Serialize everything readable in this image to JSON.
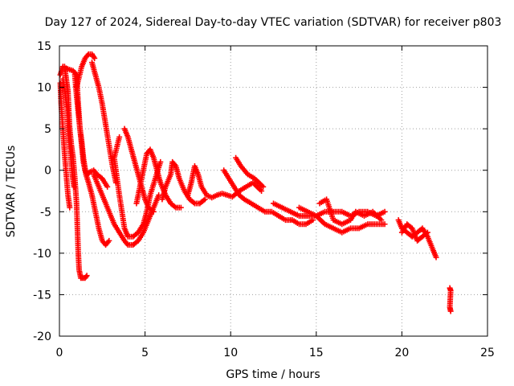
{
  "chart_data": {
    "type": "scatter",
    "title": "Day 127 of 2024, Sidereal Day-to-day VTEC variation (SDTVAR) for receiver p803",
    "xlabel": "GPS time / hours",
    "ylabel": "SDTVAR / TECUs",
    "xlim": [
      0,
      25
    ],
    "ylim": [
      -20,
      15
    ],
    "xticks": [
      "0",
      "5",
      "10",
      "15",
      "20",
      "25"
    ],
    "yticks": [
      "15",
      "10",
      "5",
      "0",
      "-5",
      "-10",
      "-15",
      "-20"
    ],
    "grid": true,
    "marker": "plus",
    "series": [
      {
        "name": "SDTVAR",
        "color": "#ff0000",
        "tracks": [
          [
            [
              0.05,
              11.5
            ],
            [
              0.2,
              12.5
            ],
            [
              0.5,
              12.2
            ],
            [
              0.8,
              12.0
            ],
            [
              1.0,
              11.5
            ],
            [
              1.1,
              8.0
            ],
            [
              1.2,
              5.0
            ],
            [
              1.3,
              3.0
            ],
            [
              1.4,
              1.0
            ],
            [
              1.5,
              0.0
            ],
            [
              1.6,
              -0.5
            ],
            [
              1.8,
              -0.2
            ],
            [
              2.0,
              0.0
            ],
            [
              2.2,
              -0.5
            ],
            [
              2.5,
              -1.0
            ],
            [
              2.8,
              -2.0
            ]
          ],
          [
            [
              0.05,
              10.5
            ],
            [
              0.1,
              8.0
            ],
            [
              0.2,
              5.0
            ],
            [
              0.3,
              2.0
            ],
            [
              0.4,
              -0.5
            ],
            [
              0.5,
              -3.0
            ],
            [
              0.6,
              -4.5
            ]
          ],
          [
            [
              0.3,
              12.5
            ],
            [
              0.4,
              11.0
            ],
            [
              0.5,
              9.5
            ],
            [
              0.55,
              7.0
            ],
            [
              0.6,
              5.0
            ],
            [
              0.7,
              3.0
            ],
            [
              0.8,
              1.5
            ],
            [
              0.9,
              -1.0
            ],
            [
              1.0,
              -4.0
            ],
            [
              1.05,
              -7.0
            ],
            [
              1.1,
              -10.0
            ],
            [
              1.15,
              -12.0
            ],
            [
              1.25,
              -13.0
            ],
            [
              1.5,
              -13.0
            ],
            [
              1.6,
              -12.7
            ]
          ],
          [
            [
              0.2,
              11.0
            ],
            [
              0.35,
              9.0
            ],
            [
              0.45,
              7.5
            ],
            [
              0.55,
              4.0
            ],
            [
              0.65,
              2.0
            ],
            [
              0.75,
              -0.5
            ],
            [
              0.85,
              -2.0
            ]
          ],
          [
            [
              0.9,
              11.5
            ],
            [
              1.0,
              9.0
            ],
            [
              1.1,
              7.0
            ],
            [
              1.2,
              5.0
            ],
            [
              1.3,
              3.5
            ],
            [
              1.4,
              1.5
            ],
            [
              1.55,
              -0.5
            ],
            [
              1.7,
              -1.5
            ],
            [
              1.9,
              -3.0
            ],
            [
              2.1,
              -5.0
            ],
            [
              2.3,
              -7.0
            ],
            [
              2.5,
              -8.5
            ],
            [
              2.7,
              -9.0
            ],
            [
              2.9,
              -8.5
            ]
          ],
          [
            [
              1.0,
              10.0
            ],
            [
              1.3,
              12.5
            ],
            [
              1.5,
              13.5
            ],
            [
              1.7,
              14.0
            ],
            [
              1.9,
              14.0
            ],
            [
              2.05,
              13.5
            ]
          ],
          [
            [
              1.9,
              13.0
            ],
            [
              2.1,
              11.5
            ],
            [
              2.3,
              10.0
            ],
            [
              2.5,
              8.0
            ],
            [
              2.7,
              5.5
            ],
            [
              2.9,
              3.0
            ],
            [
              3.1,
              0.5
            ],
            [
              3.3,
              -1.5
            ]
          ],
          [
            [
              2.0,
              -0.5
            ],
            [
              2.3,
              -2.0
            ],
            [
              2.6,
              -3.5
            ],
            [
              2.9,
              -5.0
            ],
            [
              3.2,
              -6.5
            ],
            [
              3.5,
              -7.5
            ],
            [
              3.8,
              -8.5
            ],
            [
              4.0,
              -9.0
            ],
            [
              4.3,
              -9.0
            ],
            [
              4.6,
              -8.5
            ],
            [
              4.9,
              -7.5
            ],
            [
              5.2,
              -6.0
            ],
            [
              5.5,
              -4.5
            ],
            [
              5.8,
              -3.0
            ]
          ],
          [
            [
              3.8,
              5.0
            ],
            [
              4.0,
              4.0
            ],
            [
              4.2,
              2.5
            ],
            [
              4.4,
              1.0
            ],
            [
              4.6,
              -0.5
            ],
            [
              4.8,
              -2.0
            ],
            [
              5.0,
              -3.5
            ],
            [
              5.2,
              -4.5
            ],
            [
              5.5,
              -5.0
            ]
          ],
          [
            [
              3.5,
              4.0
            ],
            [
              3.2,
              1.5
            ],
            [
              3.5,
              -3.0
            ],
            [
              3.8,
              -7.0
            ],
            [
              4.0,
              -8.0
            ],
            [
              4.3,
              -8.0
            ],
            [
              4.6,
              -7.5
            ],
            [
              4.9,
              -6.5
            ],
            [
              5.1,
              -5.0
            ],
            [
              5.3,
              -3.0
            ],
            [
              5.6,
              -1.0
            ],
            [
              5.9,
              1.0
            ]
          ],
          [
            [
              4.5,
              -4.0
            ],
            [
              4.7,
              -2.0
            ],
            [
              4.9,
              0.0
            ],
            [
              5.1,
              2.0
            ],
            [
              5.3,
              2.5
            ],
            [
              5.5,
              1.5
            ],
            [
              5.7,
              0.0
            ],
            [
              5.9,
              -1.5
            ],
            [
              6.2,
              -3.0
            ],
            [
              6.5,
              -4.0
            ],
            [
              6.8,
              -4.5
            ],
            [
              7.1,
              -4.5
            ]
          ],
          [
            [
              6.0,
              -3.5
            ],
            [
              6.2,
              -2.0
            ],
            [
              6.5,
              -0.5
            ],
            [
              6.6,
              1.0
            ],
            [
              6.8,
              0.5
            ],
            [
              7.0,
              -1.0
            ],
            [
              7.3,
              -2.5
            ],
            [
              7.6,
              -3.5
            ],
            [
              7.9,
              -4.0
            ],
            [
              8.2,
              -4.0
            ],
            [
              8.5,
              -3.5
            ]
          ],
          [
            [
              7.5,
              -3.0
            ],
            [
              7.7,
              -1.5
            ],
            [
              7.9,
              0.5
            ],
            [
              8.1,
              -0.5
            ],
            [
              8.3,
              -2.0
            ],
            [
              8.6,
              -3.0
            ],
            [
              8.9,
              -3.3
            ],
            [
              9.2,
              -3.0
            ],
            [
              9.5,
              -2.8
            ],
            [
              9.8,
              -3.0
            ],
            [
              10.1,
              -3.2
            ],
            [
              10.5,
              -2.5
            ],
            [
              10.9,
              -2.0
            ],
            [
              11.3,
              -1.5
            ],
            [
              11.8,
              -2.5
            ]
          ],
          [
            [
              9.6,
              0.0
            ],
            [
              9.9,
              -1.0
            ],
            [
              10.2,
              -2.0
            ],
            [
              10.5,
              -3.0
            ],
            [
              10.8,
              -3.5
            ],
            [
              11.2,
              -4.0
            ],
            [
              11.6,
              -4.5
            ],
            [
              12.0,
              -5.0
            ],
            [
              12.4,
              -5.0
            ],
            [
              12.8,
              -5.5
            ],
            [
              13.2,
              -6.0
            ],
            [
              13.6,
              -6.0
            ],
            [
              14.0,
              -6.5
            ],
            [
              14.4,
              -6.5
            ],
            [
              14.8,
              -6.0
            ]
          ],
          [
            [
              10.3,
              1.5
            ],
            [
              10.6,
              0.5
            ],
            [
              11.0,
              -0.5
            ],
            [
              11.4,
              -1.0
            ],
            [
              11.9,
              -2.0
            ]
          ],
          [
            [
              12.5,
              -4.0
            ],
            [
              13.0,
              -4.5
            ],
            [
              13.5,
              -5.0
            ],
            [
              14.0,
              -5.5
            ],
            [
              14.5,
              -5.5
            ],
            [
              15.0,
              -5.5
            ],
            [
              15.5,
              -5.0
            ],
            [
              16.0,
              -5.0
            ],
            [
              16.5,
              -5.0
            ],
            [
              17.0,
              -5.5
            ],
            [
              17.5,
              -5.0
            ],
            [
              18.0,
              -5.0
            ],
            [
              18.5,
              -5.5
            ],
            [
              19.0,
              -5.0
            ]
          ],
          [
            [
              14.0,
              -4.5
            ],
            [
              14.5,
              -5.0
            ],
            [
              15.0,
              -5.5
            ],
            [
              15.5,
              -6.5
            ],
            [
              16.0,
              -7.0
            ],
            [
              16.5,
              -7.5
            ],
            [
              17.0,
              -7.0
            ],
            [
              17.5,
              -7.0
            ],
            [
              18.0,
              -6.5
            ],
            [
              18.5,
              -6.5
            ],
            [
              19.0,
              -6.5
            ]
          ],
          [
            [
              15.2,
              -4.0
            ],
            [
              15.6,
              -3.5
            ],
            [
              16.0,
              -6.0
            ],
            [
              16.5,
              -6.5
            ],
            [
              17.0,
              -6.0
            ],
            [
              17.3,
              -5.0
            ],
            [
              17.8,
              -5.5
            ],
            [
              18.3,
              -5.0
            ],
            [
              18.8,
              -6.0
            ]
          ],
          [
            [
              19.8,
              -6.0
            ],
            [
              20.0,
              -7.0
            ],
            [
              20.3,
              -7.5
            ],
            [
              20.6,
              -8.0
            ],
            [
              20.9,
              -7.5
            ],
            [
              21.2,
              -7.0
            ],
            [
              21.5,
              -8.0
            ],
            [
              21.8,
              -9.5
            ],
            [
              22.0,
              -10.5
            ]
          ],
          [
            [
              20.0,
              -7.5
            ],
            [
              20.3,
              -6.5
            ],
            [
              20.6,
              -7.0
            ],
            [
              20.9,
              -8.5
            ],
            [
              21.2,
              -8.0
            ],
            [
              21.5,
              -7.5
            ]
          ],
          [
            [
              22.8,
              -14.2
            ],
            [
              22.85,
              -14.5
            ],
            [
              22.8,
              -16.5
            ],
            [
              22.85,
              -17.0
            ]
          ]
        ]
      }
    ]
  }
}
